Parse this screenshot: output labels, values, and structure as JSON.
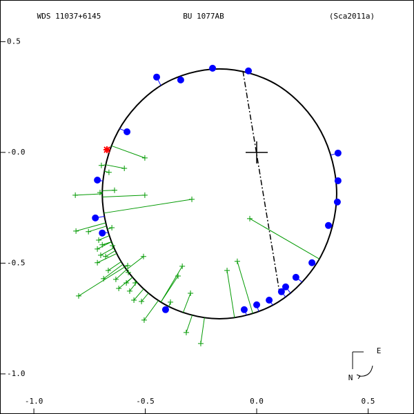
{
  "chart_data": {
    "type": "scatter",
    "titles": [
      "WDS 11037+6145",
      "BU 1077AB",
      "(Sca2011a)"
    ],
    "xlim": [
      -1.152,
      0.706
    ],
    "ylim": [
      -1.181,
      0.688
    ],
    "xticks": [
      {
        "value": -1,
        "label": "-1.0"
      },
      -0.5,
      {
        "value": 0,
        "label": "0.0"
      },
      0.5
    ],
    "yticks": [
      0.5,
      {
        "value": 0,
        "label": "-0.0"
      },
      -0.5,
      {
        "value": -1,
        "label": "-1.0"
      }
    ],
    "compass": [
      "E",
      "N"
    ],
    "center": {
      "x": 0,
      "y": 0
    },
    "orbit": {
      "color": "#000000",
      "x": [
        0.359,
        0.288,
        0.096,
        -0.167,
        -0.43,
        -0.622,
        -0.693,
        -0.622,
        -0.43,
        -0.167,
        0.096,
        0.288
      ],
      "y": [
        -0.187,
        0.095,
        0.302,
        0.377,
        0.302,
        0.095,
        -0.187,
        -0.469,
        -0.676,
        -0.751,
        -0.676,
        -0.469
      ]
    },
    "node_line": {
      "color": "#000000",
      "x": [
        -0.062,
        0.102
      ],
      "y": [
        0.368,
        -0.629
      ]
    },
    "series": [
      {
        "marker": "dot",
        "color": "#0000ff",
        "x": [
          -0.449,
          -0.341,
          -0.198,
          -0.037,
          -0.582,
          0.365,
          0.365,
          0.362,
          0.322,
          0.248,
          0.176,
          0.13,
          0.111,
          0.056,
          0.0,
          -0.056,
          -0.409,
          -0.715,
          -0.724,
          -0.693
        ],
        "y": [
          0.34,
          0.327,
          0.38,
          0.368,
          0.093,
          -0.003,
          -0.128,
          -0.224,
          -0.33,
          -0.498,
          -0.564,
          -0.607,
          -0.629,
          -0.667,
          -0.688,
          -0.71,
          -0.71,
          -0.125,
          -0.296,
          -0.364
        ]
      },
      {
        "marker": "star",
        "color": "#ff0000",
        "x": [
          -0.672
        ],
        "y": [
          0.012
        ]
      },
      {
        "marker": "plus",
        "color": "#009900",
        "x": [
          -0.502,
          -0.697,
          -0.594,
          -0.663,
          -0.814,
          -0.502,
          -0.638,
          -0.703,
          -0.291,
          -0.811,
          -0.755,
          -0.709,
          -0.715,
          -0.693,
          -0.647,
          -0.7,
          -0.715,
          -0.678,
          -0.508,
          -0.666,
          -0.632,
          -0.579,
          -0.576,
          -0.585,
          -0.545,
          -0.619,
          -0.57,
          -0.334,
          -0.353,
          -0.551,
          -0.517,
          -0.387,
          -0.297,
          -0.505,
          -0.799,
          -0.316,
          -0.251,
          -0.133,
          -0.087,
          -0.031,
          -0.687,
          -0.65
        ],
        "y": [
          -0.025,
          -0.059,
          -0.072,
          -0.09,
          -0.193,
          -0.193,
          -0.171,
          -0.181,
          -0.212,
          -0.355,
          -0.358,
          -0.396,
          -0.436,
          -0.417,
          -0.421,
          -0.464,
          -0.498,
          -0.47,
          -0.47,
          -0.533,
          -0.573,
          -0.511,
          -0.542,
          -0.589,
          -0.589,
          -0.614,
          -0.626,
          -0.514,
          -0.558,
          -0.667,
          -0.673,
          -0.676,
          -0.636,
          -0.757,
          -0.648,
          -0.813,
          -0.863,
          -0.533,
          -0.492,
          -0.299,
          -0.57,
          -0.34
        ]
      }
    ]
  }
}
